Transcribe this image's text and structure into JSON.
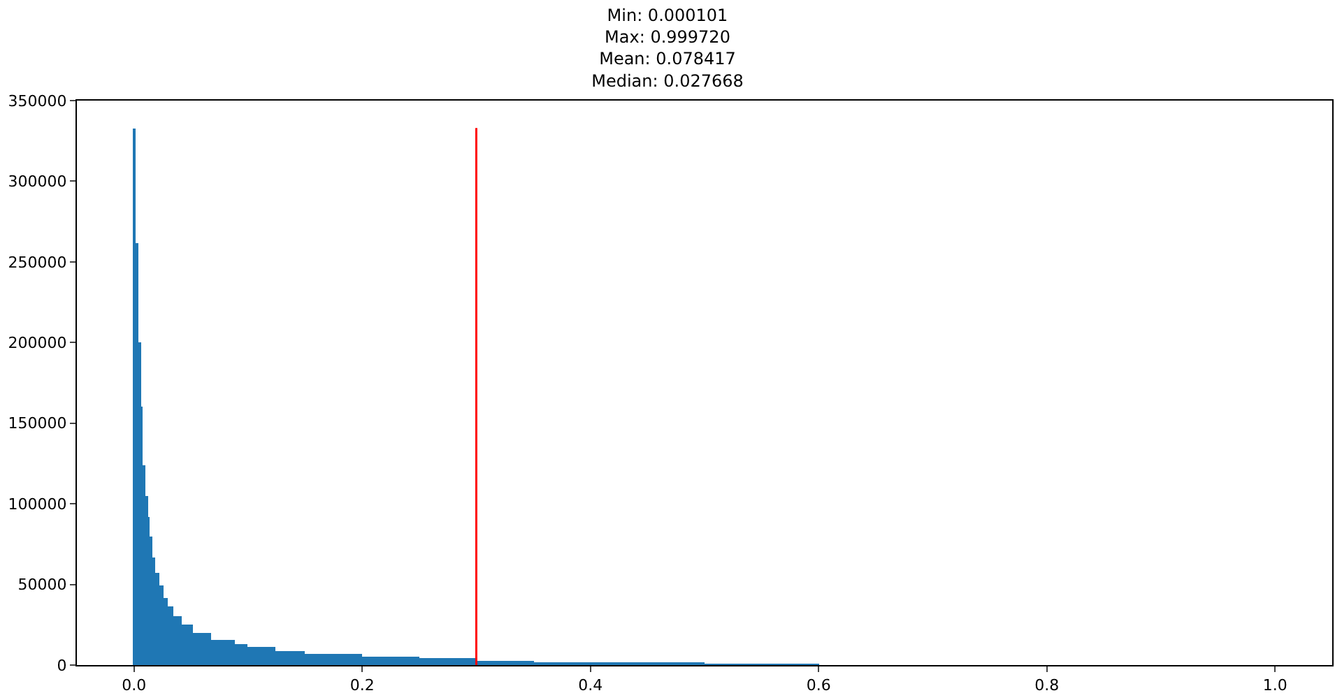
{
  "chart_data": {
    "type": "histogram",
    "title": "Min: 0.000101\nMax: 0.999720\nMean: 0.078417\nMedian: 0.027668",
    "bins": [
      0,
      0.002,
      0.004,
      0.006,
      0.008,
      0.01,
      0.012,
      0.014,
      0.016,
      0.019,
      0.022,
      0.026,
      0.03,
      0.035,
      0.042,
      0.052,
      0.068,
      0.088,
      0.1,
      0.124,
      0.15,
      0.2,
      0.25,
      0.3,
      0.35,
      0.4,
      0.45,
      0.5,
      0.6
    ],
    "values": [
      333000,
      262000,
      200000,
      160000,
      124000,
      105000,
      92000,
      80000,
      67000,
      57000,
      49000,
      42000,
      36000,
      30000,
      25000,
      20000,
      16000,
      13000,
      11000,
      9000,
      7000,
      5000,
      4000,
      3000,
      2000,
      1000,
      1000,
      500
    ],
    "color": "#1f77b4",
    "xlim": [
      -0.05,
      1.05
    ],
    "xticks": [
      {
        "value": 0,
        "label": "0.0"
      },
      {
        "value": 0.2,
        "label": "0.2"
      },
      {
        "value": 0.4,
        "label": "0.4"
      },
      {
        "value": 0.6,
        "label": "0.6"
      },
      {
        "value": 0.8,
        "label": "0.8"
      },
      {
        "value": 1.0,
        "label": "1.0"
      }
    ],
    "ylim": [
      0,
      350000
    ],
    "yticks": [
      0,
      50000,
      100000,
      150000,
      200000,
      250000,
      300000,
      350000
    ],
    "ref_lines": [
      {
        "axis": "x",
        "value": 0.3,
        "color": "#ff0000"
      }
    ]
  }
}
